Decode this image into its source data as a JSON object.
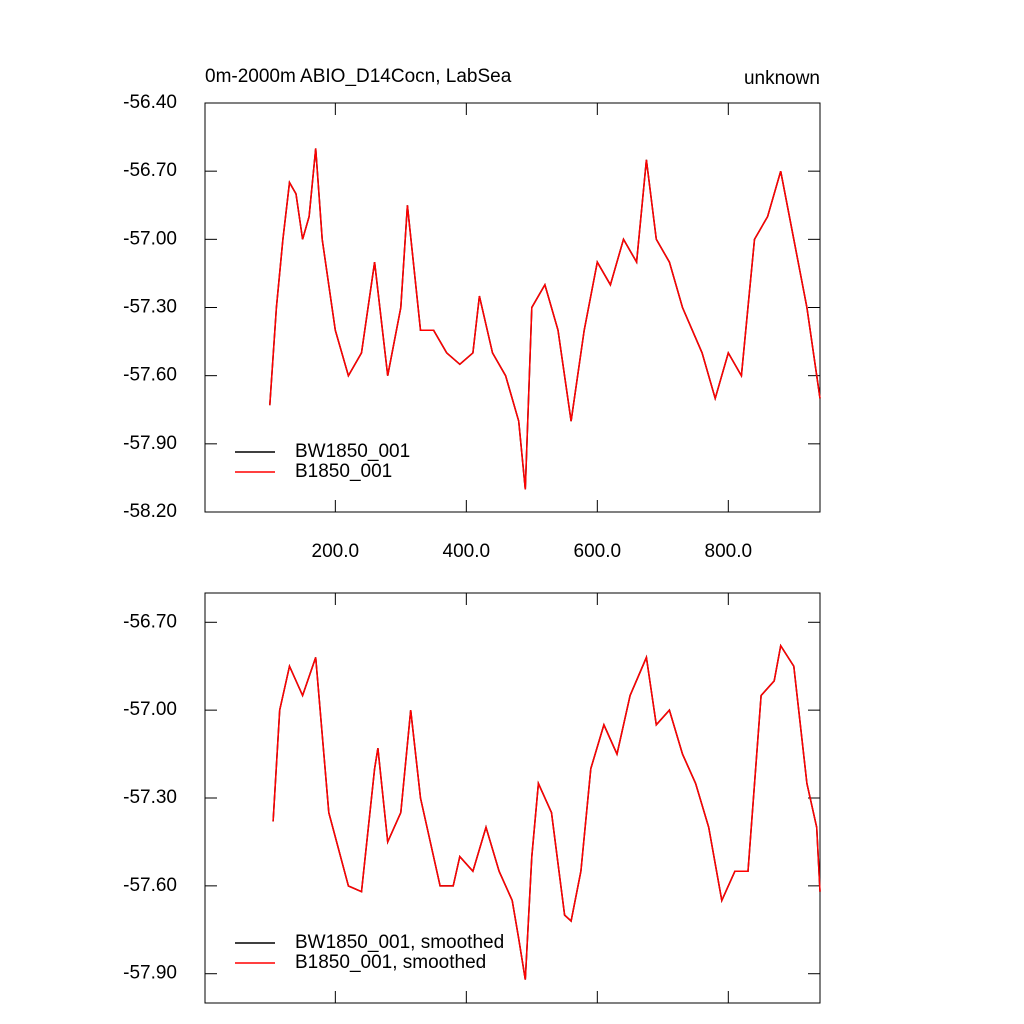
{
  "chart_data": [
    {
      "type": "line",
      "title": "0m-2000m ABIO_D14Cocn, LabSea",
      "subtitle": "unknown",
      "x": [
        100,
        110,
        120,
        130,
        140,
        150,
        160,
        170,
        180,
        200,
        220,
        240,
        260,
        280,
        300,
        310,
        330,
        350,
        370,
        390,
        410,
        420,
        440,
        460,
        480,
        490,
        500,
        520,
        540,
        560,
        580,
        600,
        620,
        640,
        660,
        675,
        690,
        710,
        730,
        760,
        780,
        800,
        820,
        840,
        860,
        880,
        900,
        920,
        940
      ],
      "series": [
        {
          "name": "BW1850_001",
          "color": "#000000",
          "values": [
            -57.73,
            -57.3,
            -57.0,
            -56.75,
            -56.8,
            -57.0,
            -56.9,
            -56.6,
            -57.0,
            -57.4,
            -57.6,
            -57.5,
            -57.1,
            -57.6,
            -57.3,
            -56.85,
            -57.4,
            -57.4,
            -57.5,
            -57.55,
            -57.5,
            -57.25,
            -57.5,
            -57.6,
            -57.8,
            -58.1,
            -57.3,
            -57.2,
            -57.4,
            -57.8,
            -57.4,
            -57.1,
            -57.2,
            -57.0,
            -57.1,
            -56.65,
            -57.0,
            -57.1,
            -57.3,
            -57.5,
            -57.7,
            -57.5,
            -57.6,
            -57.0,
            -56.9,
            -56.7,
            -57.0,
            -57.3,
            -57.7
          ]
        },
        {
          "name": "B1850_001",
          "color": "#ff0000",
          "values": [
            -57.73,
            -57.3,
            -57.0,
            -56.75,
            -56.8,
            -57.0,
            -56.9,
            -56.6,
            -57.0,
            -57.4,
            -57.6,
            -57.5,
            -57.1,
            -57.6,
            -57.3,
            -56.85,
            -57.4,
            -57.4,
            -57.5,
            -57.55,
            -57.5,
            -57.25,
            -57.5,
            -57.6,
            -57.8,
            -58.1,
            -57.3,
            -57.2,
            -57.4,
            -57.8,
            -57.4,
            -57.1,
            -57.2,
            -57.0,
            -57.1,
            -56.65,
            -57.0,
            -57.1,
            -57.3,
            -57.5,
            -57.7,
            -57.5,
            -57.6,
            -57.0,
            -56.9,
            -56.7,
            -57.0,
            -57.3,
            -57.7
          ]
        }
      ],
      "xlim": [
        1,
        940
      ],
      "xticks": [
        {
          "value": 200,
          "label": "200.0"
        },
        {
          "value": 400,
          "label": "400.0"
        },
        {
          "value": 600,
          "label": "600.0"
        },
        {
          "value": 800,
          "label": "800.0"
        }
      ],
      "ylim": [
        -58.2,
        -56.4
      ],
      "yticks": [
        {
          "value": -58.2,
          "label": "-58.20"
        },
        {
          "value": -57.9,
          "label": "-57.90"
        },
        {
          "value": -57.6,
          "label": "-57.60"
        },
        {
          "value": -57.3,
          "label": "-57.30"
        },
        {
          "value": -57.0,
          "label": "-57.00"
        },
        {
          "value": -56.7,
          "label": "-56.70"
        },
        {
          "value": -56.4,
          "label": "-56.40"
        }
      ],
      "show_xtick_labels": true,
      "legend": "lower-left"
    },
    {
      "type": "line",
      "x": [
        105,
        115,
        130,
        150,
        170,
        190,
        220,
        240,
        260,
        265,
        280,
        300,
        315,
        330,
        360,
        380,
        390,
        410,
        430,
        450,
        470,
        480,
        490,
        500,
        510,
        530,
        550,
        560,
        575,
        590,
        610,
        630,
        650,
        675,
        690,
        710,
        730,
        750,
        770,
        790,
        810,
        830,
        850,
        870,
        880,
        900,
        920,
        935,
        940
      ],
      "series": [
        {
          "name": "BW1850_001, smoothed",
          "color": "#000000",
          "values": [
            -57.38,
            -57.0,
            -56.85,
            -56.95,
            -56.82,
            -57.35,
            -57.6,
            -57.62,
            -57.2,
            -57.13,
            -57.45,
            -57.35,
            -57.0,
            -57.3,
            -57.6,
            -57.6,
            -57.5,
            -57.55,
            -57.4,
            -57.55,
            -57.65,
            -57.78,
            -57.92,
            -57.5,
            -57.25,
            -57.35,
            -57.7,
            -57.72,
            -57.55,
            -57.2,
            -57.05,
            -57.15,
            -56.95,
            -56.82,
            -57.05,
            -57.0,
            -57.15,
            -57.25,
            -57.4,
            -57.65,
            -57.55,
            -57.55,
            -56.95,
            -56.9,
            -56.78,
            -56.85,
            -57.25,
            -57.4,
            -57.62
          ]
        },
        {
          "name": "B1850_001, smoothed",
          "color": "#ff0000",
          "values": [
            -57.38,
            -57.0,
            -56.85,
            -56.95,
            -56.82,
            -57.35,
            -57.6,
            -57.62,
            -57.2,
            -57.13,
            -57.45,
            -57.35,
            -57.0,
            -57.3,
            -57.6,
            -57.6,
            -57.5,
            -57.55,
            -57.4,
            -57.55,
            -57.65,
            -57.78,
            -57.92,
            -57.5,
            -57.25,
            -57.35,
            -57.7,
            -57.72,
            -57.55,
            -57.2,
            -57.05,
            -57.15,
            -56.95,
            -56.82,
            -57.05,
            -57.0,
            -57.15,
            -57.25,
            -57.4,
            -57.65,
            -57.55,
            -57.55,
            -56.95,
            -56.9,
            -56.78,
            -56.85,
            -57.25,
            -57.4,
            -57.62
          ]
        }
      ],
      "xlim": [
        1,
        940
      ],
      "xticks": [
        200,
        400,
        600,
        800
      ],
      "ylim": [
        -58.0,
        -56.6
      ],
      "yticks": [
        {
          "value": -57.9,
          "label": "-57.90"
        },
        {
          "value": -57.6,
          "label": "-57.60"
        },
        {
          "value": -57.3,
          "label": "-57.30"
        },
        {
          "value": -57.0,
          "label": "-57.00"
        },
        {
          "value": -56.7,
          "label": "-56.70"
        }
      ],
      "show_xtick_labels": false,
      "legend": "lower-left"
    }
  ]
}
